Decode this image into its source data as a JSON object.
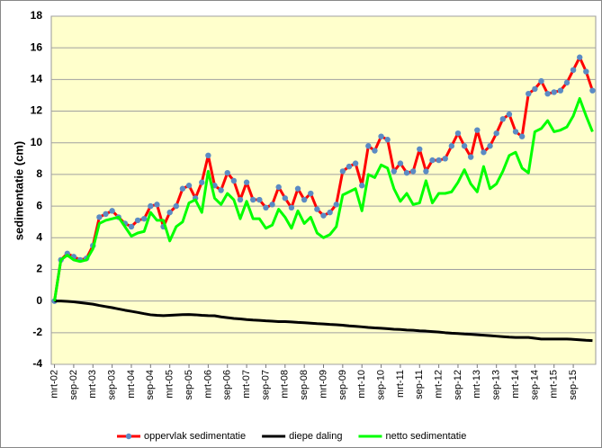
{
  "chart_data": {
    "type": "line",
    "y_label": "sedimentatie (cm)",
    "categories": [
      "mrt-02",
      null,
      null,
      "sep-02",
      null,
      null,
      "mrt-03",
      null,
      null,
      "sep-03",
      null,
      null,
      "mrt-04",
      null,
      null,
      "sep-04",
      null,
      null,
      "mrt-05",
      null,
      null,
      "sep-05",
      null,
      null,
      "mrt-06",
      null,
      null,
      "sep-06",
      null,
      null,
      "mrt-07",
      null,
      null,
      "sep-07",
      null,
      null,
      "mrt-08",
      null,
      null,
      "sep-08",
      null,
      null,
      "mrt-09",
      null,
      null,
      "sep-09",
      null,
      null,
      "mrt-10",
      null,
      null,
      "sep-10",
      null,
      null,
      "mrt-11",
      null,
      null,
      "sep-11",
      null,
      null,
      "mrt-12",
      null,
      null,
      "sep-12",
      null,
      null,
      "mrt-13",
      null,
      null,
      "sep-13",
      null,
      null,
      "mrt-14",
      null,
      null,
      "sep-14",
      null,
      null,
      "mrt-15",
      null,
      null,
      "sep-15",
      null,
      null,
      null
    ],
    "series": [
      {
        "name": "oppervlak sedimentatie",
        "color": "#ff0000",
        "marker_color": "#5b8bc4",
        "markers": true,
        "values": [
          0,
          2.6,
          3.0,
          2.8,
          2.6,
          2.7,
          3.5,
          5.3,
          5.5,
          5.7,
          5.3,
          4.9,
          4.7,
          5.1,
          5.2,
          6.0,
          6.1,
          4.7,
          5.6,
          6.0,
          7.1,
          7.3,
          6.5,
          7.5,
          9.2,
          7.3,
          7.0,
          8.1,
          7.6,
          6.4,
          7.5,
          6.4,
          6.4,
          5.9,
          6.1,
          7.2,
          6.5,
          5.9,
          7.1,
          6.4,
          6.8,
          5.8,
          5.4,
          5.6,
          6.1,
          8.2,
          8.5,
          8.7,
          7.3,
          9.8,
          9.5,
          10.4,
          10.2,
          8.2,
          8.7,
          8.1,
          8.2,
          9.6,
          8.2,
          8.9,
          8.9,
          9.0,
          9.8,
          10.6,
          9.8,
          9.1,
          10.8,
          9.4,
          9.8,
          10.6,
          11.5,
          11.8,
          10.7,
          10.4,
          13.1,
          13.4,
          13.9,
          13.1,
          13.2,
          13.3,
          13.8,
          14.6,
          15.4,
          14.5,
          13.3
        ]
      },
      {
        "name": "diepe daling",
        "color": "#000000",
        "markers": false,
        "values": [
          0,
          0,
          -0.02,
          -0.05,
          -0.1,
          -0.15,
          -0.2,
          -0.28,
          -0.35,
          -0.42,
          -0.5,
          -0.58,
          -0.65,
          -0.72,
          -0.8,
          -0.87,
          -0.9,
          -0.92,
          -0.9,
          -0.88,
          -0.86,
          -0.85,
          -0.87,
          -0.9,
          -0.92,
          -0.93,
          -1.0,
          -1.05,
          -1.1,
          -1.13,
          -1.17,
          -1.2,
          -1.22,
          -1.25,
          -1.27,
          -1.3,
          -1.3,
          -1.32,
          -1.35,
          -1.37,
          -1.4,
          -1.43,
          -1.45,
          -1.48,
          -1.5,
          -1.53,
          -1.57,
          -1.6,
          -1.63,
          -1.67,
          -1.7,
          -1.72,
          -1.75,
          -1.78,
          -1.8,
          -1.83,
          -1.85,
          -1.88,
          -1.9,
          -1.93,
          -1.96,
          -2.0,
          -2.03,
          -2.05,
          -2.08,
          -2.1,
          -2.13,
          -2.16,
          -2.19,
          -2.22,
          -2.25,
          -2.28,
          -2.3,
          -2.3,
          -2.3,
          -2.35,
          -2.4,
          -2.4,
          -2.4,
          -2.4,
          -2.4,
          -2.42,
          -2.45,
          -2.48,
          -2.5
        ]
      },
      {
        "name": "netto sedimentatie",
        "color": "#00ff00",
        "markers": false,
        "values": [
          0,
          2.6,
          2.9,
          2.6,
          2.5,
          2.6,
          3.3,
          4.9,
          5.1,
          5.2,
          5.3,
          4.7,
          4.1,
          4.3,
          4.4,
          5.6,
          5.1,
          5.1,
          3.8,
          4.7,
          5.0,
          6.2,
          6.4,
          5.6,
          8.2,
          6.5,
          6.1,
          6.8,
          6.4,
          5.2,
          6.3,
          5.2,
          5.2,
          4.6,
          4.8,
          5.8,
          5.3,
          4.6,
          5.7,
          4.9,
          5.3,
          4.3,
          4.0,
          4.2,
          4.7,
          6.7,
          6.9,
          7.1,
          5.7,
          8.0,
          7.8,
          8.6,
          8.4,
          7.1,
          6.3,
          6.8,
          6.1,
          6.2,
          7.6,
          6.2,
          6.8,
          6.8,
          6.9,
          7.5,
          8.3,
          7.4,
          6.9,
          8.5,
          7.1,
          7.4,
          8.2,
          9.2,
          9.4,
          8.4,
          8.1,
          10.7,
          10.9,
          11.4,
          10.7,
          10.8,
          11.0,
          11.7,
          12.8,
          11.7,
          10.7
        ]
      }
    ],
    "ylim": [
      -4,
      18
    ],
    "yticks": [
      -4,
      -2,
      0,
      2,
      4,
      6,
      8,
      10,
      12,
      14,
      16,
      18
    ],
    "grid": true,
    "legend": "bottom",
    "plot_background": "#ffffcc"
  }
}
